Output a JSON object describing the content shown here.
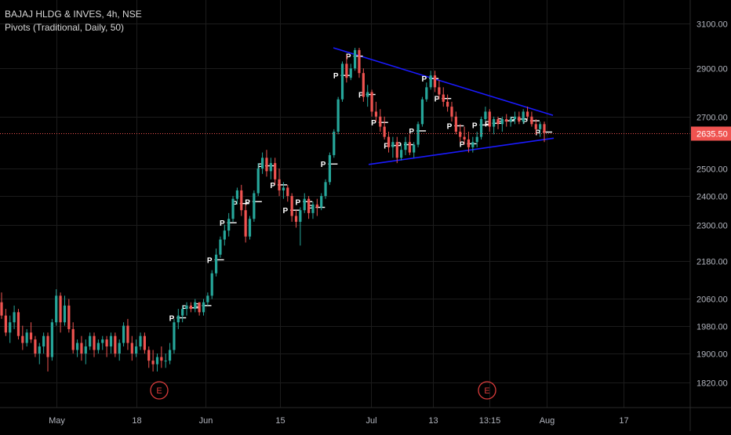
{
  "header": {
    "symbol_line": "BAJAJ HLDG & INVES, 4h, NSE",
    "indicator_line": "Pivots (Traditional, Daily, 50)"
  },
  "colors": {
    "background": "#000000",
    "grid": "#1c1c1c",
    "up": "#26a69a",
    "down": "#ef5350",
    "trendline": "#1a1aff",
    "price_line": "#ef5350",
    "axis_text": "#b2b5be",
    "pivot_text": "#ffffff",
    "earnings": "#d93b3b"
  },
  "chart_data": {
    "type": "candlestick",
    "symbol": "BAJAJ HLDG & INVES",
    "timeframe": "4h",
    "exchange": "NSE",
    "indicator": "Pivots (Traditional, Daily, 50)",
    "y_axis": {
      "ticks": [
        "3100.00",
        "2900.00",
        "2700.00",
        "2500.00",
        "2400.00",
        "2300.00",
        "2180.00",
        "2060.00",
        "1980.00",
        "1900.00",
        "1820.00"
      ],
      "scale": "log",
      "range": [
        1770,
        3180
      ]
    },
    "x_axis": {
      "ticks": [
        "May",
        "18",
        "Jun",
        "15",
        "Jul",
        "13",
        "13:15",
        "Aug",
        "17"
      ]
    },
    "last_price": "2635.50",
    "trendlines": [
      {
        "from": [
          "Jun 24",
          2990
        ],
        "to": [
          "Aug 3",
          2705
        ]
      },
      {
        "from": [
          "Jul 1",
          2515
        ],
        "to": [
          "Aug 3",
          2615
        ]
      }
    ],
    "earnings_markers": [
      "E",
      "E"
    ],
    "pivot_label": "P",
    "candles": [
      [
        2050,
        2080,
        2000,
        2010
      ],
      [
        2010,
        2030,
        1950,
        1960
      ],
      [
        1960,
        2010,
        1930,
        1990
      ],
      [
        1990,
        2040,
        1970,
        2020
      ],
      [
        2020,
        2030,
        1940,
        1950
      ],
      [
        1950,
        1980,
        1910,
        1930
      ],
      [
        1930,
        1970,
        1920,
        1960
      ],
      [
        1960,
        1990,
        1930,
        1940
      ],
      [
        1940,
        1950,
        1890,
        1900
      ],
      [
        1900,
        1930,
        1870,
        1920
      ],
      [
        1920,
        1960,
        1900,
        1950
      ],
      [
        1950,
        1960,
        1850,
        1890
      ],
      [
        1890,
        2000,
        1880,
        1990
      ],
      [
        1990,
        2090,
        1980,
        2070
      ],
      [
        2070,
        2080,
        1960,
        1990
      ],
      [
        1990,
        2070,
        1980,
        2040
      ],
      [
        2040,
        2060,
        1960,
        1970
      ],
      [
        1970,
        1990,
        1900,
        1910
      ],
      [
        1910,
        1940,
        1890,
        1930
      ],
      [
        1930,
        1950,
        1880,
        1900
      ],
      [
        1900,
        1940,
        1870,
        1920
      ],
      [
        1920,
        1960,
        1910,
        1950
      ],
      [
        1950,
        1960,
        1890,
        1910
      ],
      [
        1910,
        1940,
        1900,
        1930
      ],
      [
        1930,
        1950,
        1910,
        1940
      ],
      [
        1940,
        1950,
        1890,
        1920
      ],
      [
        1920,
        1960,
        1900,
        1950
      ],
      [
        1950,
        1960,
        1890,
        1900
      ],
      [
        1900,
        1940,
        1880,
        1930
      ],
      [
        1930,
        1990,
        1920,
        1980
      ],
      [
        1980,
        2000,
        1910,
        1930
      ],
      [
        1930,
        1950,
        1880,
        1900
      ],
      [
        1900,
        1940,
        1890,
        1920
      ],
      [
        1920,
        1960,
        1910,
        1950
      ],
      [
        1950,
        1960,
        1900,
        1910
      ],
      [
        1910,
        1920,
        1860,
        1880
      ],
      [
        1880,
        1910,
        1850,
        1870
      ],
      [
        1870,
        1900,
        1850,
        1890
      ],
      [
        1890,
        1920,
        1860,
        1880
      ],
      [
        1880,
        1900,
        1860,
        1880
      ],
      [
        1880,
        1930,
        1870,
        1910
      ],
      [
        1910,
        2000,
        1900,
        1990
      ],
      [
        1990,
        2030,
        1970,
        2010
      ],
      [
        2010,
        2040,
        1990,
        2030
      ],
      [
        2030,
        2050,
        2010,
        2040
      ],
      [
        2040,
        2050,
        2020,
        2030
      ],
      [
        2030,
        2060,
        2020,
        2050
      ],
      [
        2050,
        2050,
        2010,
        2020
      ],
      [
        2020,
        2060,
        2010,
        2050
      ],
      [
        2050,
        2080,
        2040,
        2070
      ],
      [
        2070,
        2150,
        2060,
        2140
      ],
      [
        2140,
        2220,
        2130,
        2200
      ],
      [
        2200,
        2260,
        2190,
        2250
      ],
      [
        2250,
        2300,
        2230,
        2280
      ],
      [
        2280,
        2340,
        2260,
        2320
      ],
      [
        2320,
        2400,
        2310,
        2390
      ],
      [
        2390,
        2430,
        2370,
        2420
      ],
      [
        2420,
        2440,
        2330,
        2350
      ],
      [
        2350,
        2370,
        2240,
        2260
      ],
      [
        2260,
        2330,
        2250,
        2320
      ],
      [
        2320,
        2420,
        2310,
        2410
      ],
      [
        2410,
        2520,
        2400,
        2500
      ],
      [
        2500,
        2560,
        2480,
        2540
      ],
      [
        2540,
        2570,
        2470,
        2490
      ],
      [
        2490,
        2540,
        2460,
        2520
      ],
      [
        2520,
        2540,
        2440,
        2460
      ],
      [
        2460,
        2500,
        2400,
        2420
      ],
      [
        2420,
        2450,
        2390,
        2430
      ],
      [
        2430,
        2440,
        2380,
        2400
      ],
      [
        2400,
        2410,
        2310,
        2330
      ],
      [
        2330,
        2350,
        2290,
        2310
      ],
      [
        2310,
        2360,
        2230,
        2350
      ],
      [
        2350,
        2410,
        2340,
        2390
      ],
      [
        2390,
        2400,
        2320,
        2340
      ],
      [
        2340,
        2380,
        2320,
        2370
      ],
      [
        2370,
        2390,
        2330,
        2360
      ],
      [
        2360,
        2410,
        2350,
        2400
      ],
      [
        2400,
        2460,
        2390,
        2450
      ],
      [
        2450,
        2560,
        2440,
        2550
      ],
      [
        2550,
        2650,
        2540,
        2640
      ],
      [
        2640,
        2780,
        2630,
        2770
      ],
      [
        2770,
        2930,
        2760,
        2920
      ],
      [
        2920,
        2960,
        2840,
        2860
      ],
      [
        2860,
        2920,
        2850,
        2900
      ],
      [
        2900,
        2990,
        2890,
        2980
      ],
      [
        2980,
        2990,
        2860,
        2880
      ],
      [
        2880,
        2900,
        2760,
        2780
      ],
      [
        2780,
        2830,
        2740,
        2800
      ],
      [
        2800,
        2810,
        2700,
        2720
      ],
      [
        2720,
        2760,
        2680,
        2700
      ],
      [
        2700,
        2730,
        2640,
        2660
      ],
      [
        2660,
        2700,
        2610,
        2620
      ],
      [
        2620,
        2640,
        2560,
        2580
      ],
      [
        2580,
        2620,
        2540,
        2600
      ],
      [
        2600,
        2620,
        2520,
        2540
      ],
      [
        2540,
        2590,
        2530,
        2570
      ],
      [
        2570,
        2620,
        2550,
        2600
      ],
      [
        2600,
        2630,
        2550,
        2560
      ],
      [
        2560,
        2600,
        2540,
        2590
      ],
      [
        2590,
        2680,
        2580,
        2670
      ],
      [
        2670,
        2780,
        2660,
        2770
      ],
      [
        2770,
        2840,
        2760,
        2820
      ],
      [
        2820,
        2890,
        2810,
        2870
      ],
      [
        2870,
        2890,
        2800,
        2820
      ],
      [
        2820,
        2850,
        2770,
        2790
      ],
      [
        2790,
        2820,
        2740,
        2760
      ],
      [
        2760,
        2790,
        2720,
        2740
      ],
      [
        2740,
        2760,
        2680,
        2700
      ],
      [
        2700,
        2720,
        2630,
        2640
      ],
      [
        2640,
        2670,
        2600,
        2620
      ],
      [
        2620,
        2660,
        2590,
        2610
      ],
      [
        2610,
        2640,
        2560,
        2580
      ],
      [
        2580,
        2620,
        2560,
        2600
      ],
      [
        2600,
        2640,
        2580,
        2620
      ],
      [
        2620,
        2700,
        2610,
        2690
      ],
      [
        2690,
        2740,
        2680,
        2720
      ],
      [
        2720,
        2730,
        2640,
        2660
      ],
      [
        2660,
        2700,
        2630,
        2690
      ],
      [
        2690,
        2700,
        2650,
        2670
      ],
      [
        2670,
        2700,
        2640,
        2690
      ],
      [
        2690,
        2710,
        2660,
        2680
      ],
      [
        2680,
        2700,
        2660,
        2690
      ],
      [
        2690,
        2720,
        2670,
        2700
      ],
      [
        2700,
        2720,
        2670,
        2680
      ],
      [
        2680,
        2730,
        2670,
        2720
      ],
      [
        2720,
        2740,
        2690,
        2700
      ],
      [
        2700,
        2720,
        2660,
        2670
      ],
      [
        2670,
        2690,
        2630,
        2650
      ],
      [
        2650,
        2680,
        2620,
        2670
      ],
      [
        2670,
        2680,
        2600,
        2636
      ]
    ]
  }
}
